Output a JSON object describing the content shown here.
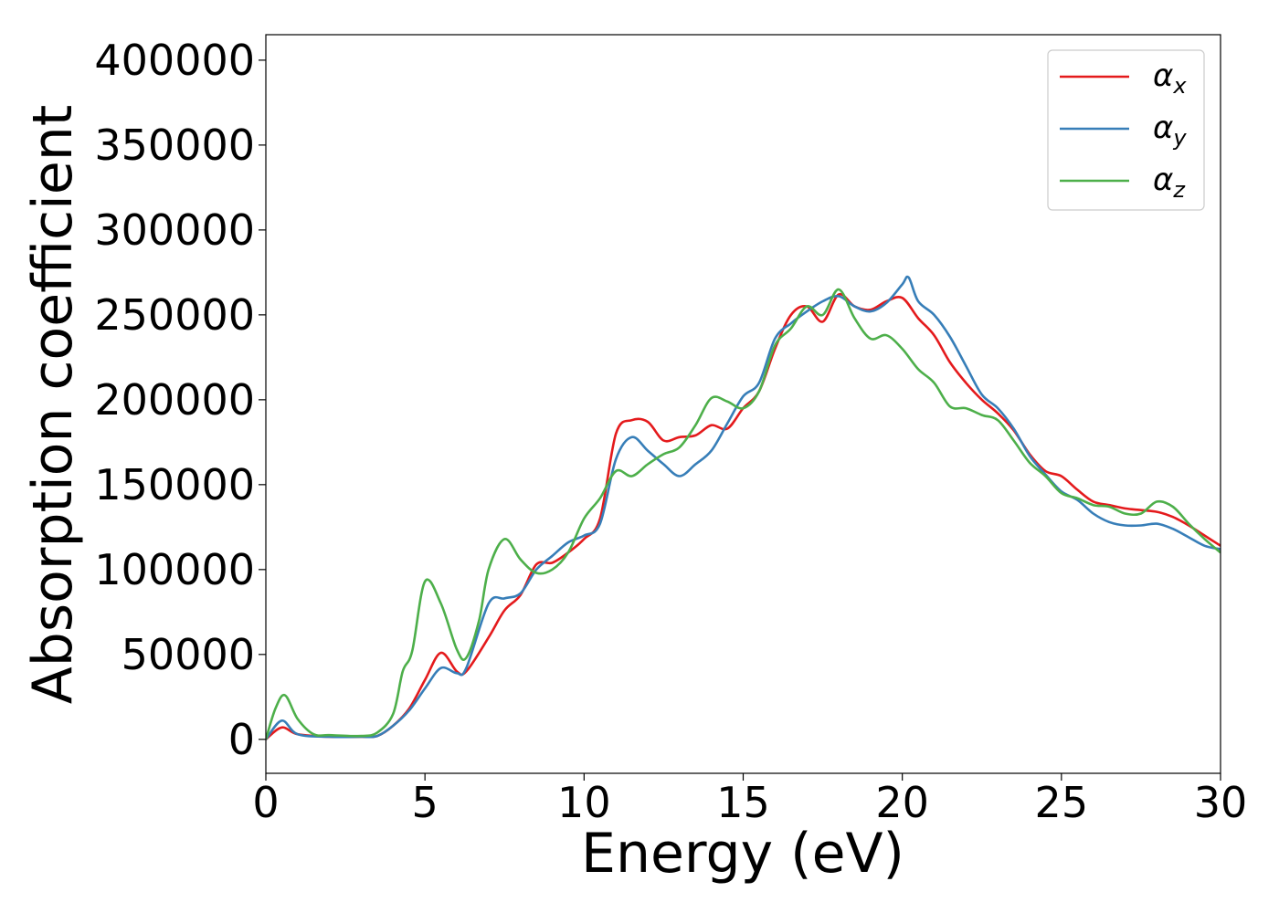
{
  "chart_data": {
    "type": "line",
    "title": "",
    "xlabel": "Energy (eV)",
    "ylabel": "Absorption coefficient",
    "xlim": [
      0,
      30
    ],
    "ylim": [
      -20000,
      415000
    ],
    "xticks": [
      0,
      5,
      10,
      15,
      20,
      25,
      30
    ],
    "xtick_labels": [
      "0",
      "5",
      "10",
      "15",
      "20",
      "25",
      "30"
    ],
    "yticks": [
      0,
      50000,
      100000,
      150000,
      200000,
      250000,
      300000,
      350000,
      400000
    ],
    "ytick_labels": [
      "0",
      "50000",
      "100000",
      "150000",
      "200000",
      "250000",
      "300000",
      "350000",
      "400000"
    ],
    "grid": false,
    "legend_position": "top-right",
    "series": [
      {
        "name": "α",
        "subscript": "x",
        "color": "#e41a1c",
        "x": [
          0,
          0.5,
          1,
          2,
          3,
          3.5,
          4,
          4.5,
          5,
          5.5,
          6,
          6.3,
          7,
          7.5,
          8,
          8.5,
          9,
          9.5,
          10,
          10.5,
          11,
          11.5,
          12,
          12.5,
          13,
          13.5,
          14,
          14.5,
          15,
          15.5,
          16,
          16.5,
          17,
          17.5,
          18,
          18.5,
          19,
          19.5,
          20,
          20.5,
          21,
          21.5,
          22,
          22.5,
          23,
          23.5,
          24,
          24.5,
          25,
          25.5,
          26,
          26.5,
          27,
          27.5,
          28,
          28.5,
          29,
          29.5,
          30
        ],
        "y": [
          0,
          7000,
          3000,
          1500,
          1500,
          2000,
          8000,
          18000,
          35000,
          51000,
          40000,
          40000,
          60000,
          76000,
          85000,
          103000,
          104000,
          110000,
          118000,
          130000,
          180000,
          188000,
          187000,
          176000,
          178000,
          179000,
          185000,
          183000,
          195000,
          205000,
          230000,
          250000,
          255000,
          246000,
          262000,
          255000,
          253000,
          258000,
          260000,
          248000,
          238000,
          222000,
          210000,
          200000,
          192000,
          182000,
          168000,
          158000,
          155000,
          147000,
          140000,
          138000,
          136000,
          135000,
          134000,
          131000,
          126000,
          120000,
          114000
        ]
      },
      {
        "name": "α",
        "subscript": "y",
        "color": "#377eb8",
        "x": [
          0,
          0.5,
          1,
          2,
          3,
          3.5,
          4,
          4.5,
          5,
          5.5,
          6,
          6.3,
          7,
          7.5,
          8,
          8.5,
          9,
          9.5,
          10,
          10.5,
          11,
          11.5,
          12,
          12.5,
          13,
          13.5,
          14,
          14.5,
          15,
          15.5,
          16,
          16.5,
          17,
          17.5,
          18,
          18.5,
          19,
          19.5,
          20,
          20.2,
          20.5,
          21,
          21.5,
          22,
          22.5,
          23,
          23.5,
          24,
          24.5,
          25,
          25.5,
          26,
          26.5,
          27,
          27.5,
          28,
          28.5,
          29,
          29.5,
          30
        ],
        "y": [
          0,
          11000,
          3000,
          1500,
          1500,
          2000,
          8000,
          17000,
          30000,
          42000,
          39000,
          42000,
          80000,
          83000,
          86000,
          100000,
          108000,
          116000,
          120000,
          127000,
          165000,
          178000,
          170000,
          162000,
          155000,
          162000,
          170000,
          186000,
          202000,
          210000,
          236000,
          245000,
          252000,
          258000,
          261000,
          255000,
          252000,
          257000,
          268000,
          272000,
          258000,
          250000,
          237000,
          220000,
          203000,
          195000,
          183000,
          167000,
          156000,
          146000,
          141000,
          133000,
          128000,
          126000,
          126000,
          127000,
          124000,
          119000,
          114000,
          112000
        ]
      },
      {
        "name": "α",
        "subscript": "z",
        "color": "#4daf4a",
        "x": [
          0,
          0.3,
          0.6,
          1,
          1.5,
          2,
          3,
          3.5,
          4,
          4.3,
          4.6,
          5,
          5.5,
          6,
          6.3,
          6.7,
          7,
          7.5,
          8,
          8.5,
          9,
          9.5,
          10,
          10.5,
          11,
          11.5,
          12,
          12.5,
          13,
          13.5,
          14,
          14.5,
          15,
          15.5,
          16,
          16.5,
          17,
          17.5,
          18,
          18.5,
          19,
          19.5,
          20,
          20.5,
          21,
          21.5,
          22,
          22.5,
          23,
          23.5,
          24,
          24.5,
          25,
          25.5,
          26,
          26.5,
          27,
          27.5,
          28,
          28.5,
          29,
          29.5,
          30
        ],
        "y": [
          0,
          18000,
          26000,
          12000,
          3000,
          2500,
          2000,
          4000,
          15000,
          40000,
          52000,
          93000,
          80000,
          53000,
          48000,
          70000,
          100000,
          118000,
          106000,
          98000,
          100000,
          110000,
          130000,
          142000,
          158000,
          155000,
          162000,
          168000,
          172000,
          185000,
          201000,
          199000,
          195000,
          205000,
          232000,
          242000,
          255000,
          250000,
          265000,
          248000,
          236000,
          238000,
          230000,
          218000,
          210000,
          196000,
          195000,
          191000,
          188000,
          176000,
          163000,
          155000,
          145000,
          142000,
          138000,
          137000,
          133000,
          133000,
          140000,
          137000,
          127000,
          118000,
          110000
        ]
      }
    ]
  }
}
